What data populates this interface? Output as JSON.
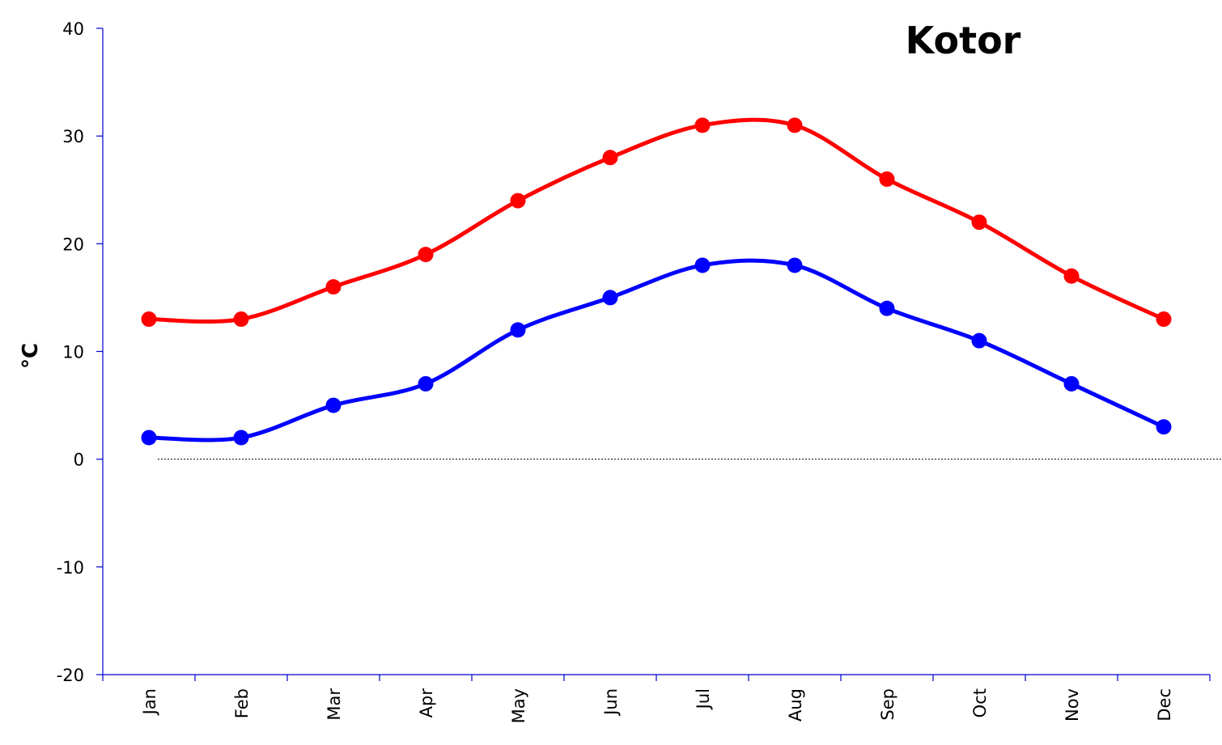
{
  "chart_data": {
    "type": "line",
    "title": "Kotor",
    "xlabel": "",
    "ylabel": "°C",
    "ylim": [
      -20,
      40
    ],
    "yticks": [
      -20,
      -10,
      0,
      10,
      20,
      30,
      40
    ],
    "categories": [
      "Jan",
      "Feb",
      "Mar",
      "Apr",
      "May",
      "Jun",
      "Jul",
      "Aug",
      "Sep",
      "Oct",
      "Nov",
      "Dec"
    ],
    "series": [
      {
        "color": "#ff0000",
        "values": [
          13,
          13,
          16,
          19,
          24,
          28,
          31,
          31,
          26,
          22,
          17,
          13
        ]
      },
      {
        "color": "#0000ff",
        "values": [
          2,
          2,
          5,
          7,
          12,
          15,
          18,
          18,
          14,
          11,
          7,
          3
        ]
      }
    ],
    "grid": false,
    "zero_line": "dotted"
  }
}
